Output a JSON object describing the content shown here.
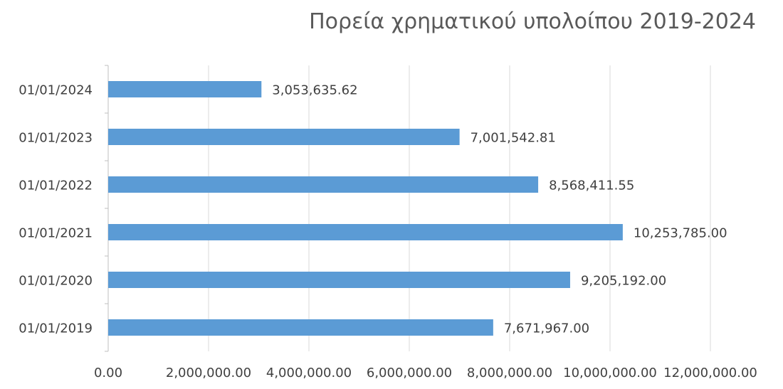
{
  "chart_data": {
    "type": "bar",
    "orientation": "horizontal",
    "title": "Πορεία χρηματικού υπολοίπου 2019-2024",
    "xlabel": "",
    "ylabel": "",
    "categories": [
      "01/01/2024",
      "01/01/2023",
      "01/01/2022",
      "01/01/2021",
      "01/01/2020",
      "01/01/2019"
    ],
    "values": [
      3053635.62,
      7001542.81,
      8568411.55,
      10253785.0,
      9205192.0,
      7671967.0
    ],
    "data_labels": [
      "3,053,635.62",
      "7,001,542.81",
      "8,568,411.55",
      "10,253,785.00",
      "9,205,192.00",
      "7,671,967.00"
    ],
    "xlim": [
      0,
      12000000
    ],
    "x_ticks": [
      0,
      2000000,
      4000000,
      6000000,
      8000000,
      10000000,
      12000000
    ],
    "x_tick_labels": [
      "0.00",
      "2,000,000.00",
      "4,000,000.00",
      "6,000,000.00",
      "8,000,000.00",
      "10,000,000.00",
      "12,000,000.00"
    ],
    "grid": "vertical",
    "legend": "none",
    "colors": {
      "bar": "#5B9BD5",
      "grid": "#D9D9D9",
      "axis": "#BFBFBF",
      "text": "#404040",
      "title": "#595959"
    }
  }
}
